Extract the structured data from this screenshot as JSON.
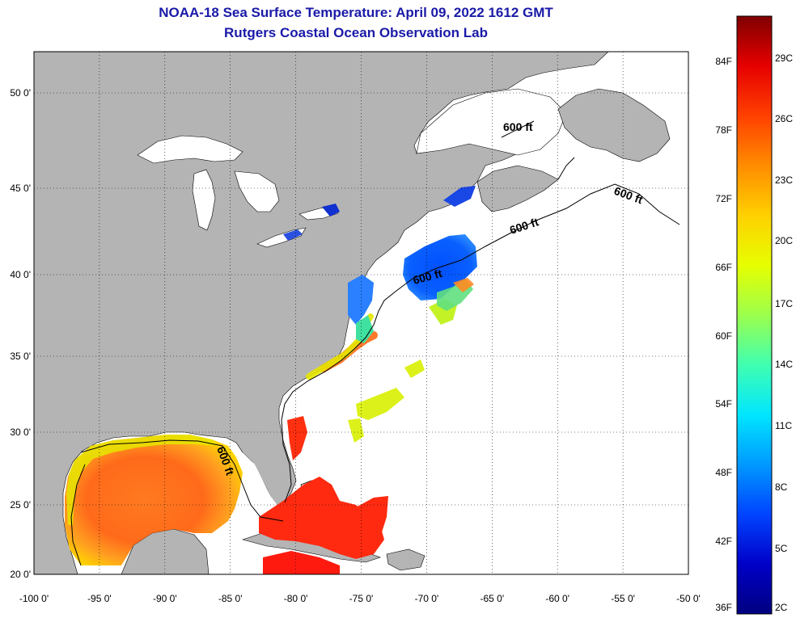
{
  "title": "NOAA-18 Sea Surface Temperature:  April 09, 2022 1612 GMT",
  "subtitle": "Rutgers Coastal Ocean Observation Lab",
  "colors": {
    "land": "#b4b4b4",
    "water": "#ffffff",
    "frame": "#000000",
    "title_text": "#1a1aa8"
  },
  "x_ticks": [
    "-100 0'",
    "-95 0'",
    "-90 0'",
    "-85 0'",
    "-80 0'",
    "-75 0'",
    "-70 0'",
    "-65 0'",
    "-60 0'",
    "-55 0'",
    "-50 0'"
  ],
  "y_ticks": [
    "50 0'",
    "45 0'",
    "40 0'",
    "35 0'",
    "30 0'",
    "25 0'",
    "20 0'"
  ],
  "isobath_label": "600 ft",
  "colorbar": {
    "fahrenheit_ticks": [
      "84F",
      "78F",
      "72F",
      "66F",
      "60F",
      "54F",
      "48F",
      "42F",
      "36F"
    ],
    "celsius_ticks": [
      "29C",
      "26C",
      "23C",
      "20C",
      "17C",
      "14C",
      "11C",
      "8C",
      "5C",
      "2C"
    ],
    "gradient_colors": [
      "#7f0000",
      "#e60000",
      "#ff4000",
      "#ff8c00",
      "#ffd000",
      "#e6ff00",
      "#9cff4d",
      "#40ffb0",
      "#00e6ff",
      "#0099ff",
      "#0044ff",
      "#0000c8",
      "#000080"
    ]
  }
}
